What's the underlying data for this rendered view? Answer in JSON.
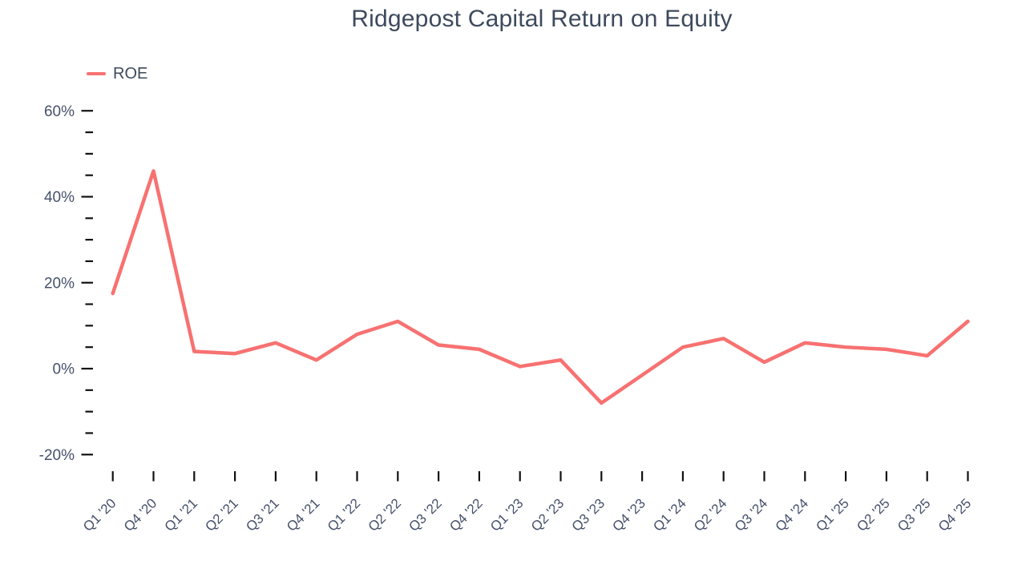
{
  "chart_data": {
    "type": "line",
    "title": "Ridgepost Capital Return on Equity",
    "grid": false,
    "legend_position": "top-left",
    "categories": [
      "Q1 '20",
      "Q4 '20",
      "Q1 '21",
      "Q2 '21",
      "Q3 '21",
      "Q4 '21",
      "Q1 '22",
      "Q2 '22",
      "Q3 '22",
      "Q4 '22",
      "Q1 '23",
      "Q2 '23",
      "Q3 '23",
      "Q4 '23",
      "Q1 '24",
      "Q2 '24",
      "Q3 '24",
      "Q4 '24",
      "Q1 '25",
      "Q2 '25",
      "Q3 '25",
      "Q4 '25"
    ],
    "series": [
      {
        "name": "ROE",
        "values": [
          17.5,
          46,
          4,
          3.5,
          6,
          2,
          8,
          11,
          5.5,
          4.5,
          0.5,
          2,
          -8,
          -1.5,
          5,
          7,
          1.5,
          6,
          5,
          4.5,
          3,
          11
        ]
      }
    ],
    "y_axis": {
      "unit": "%",
      "max_tick": 60,
      "min_tick": -20,
      "major_step": 20,
      "minor_step": 5,
      "major_ticks": [
        60,
        40,
        20,
        0,
        -20
      ],
      "tick_label_suffix": "%"
    },
    "colors": {
      "line": "#f87171",
      "label_text": "#47516b",
      "title_text": "#3e4a5c",
      "tick_mark": "#111111",
      "background": "#ffffff"
    }
  }
}
